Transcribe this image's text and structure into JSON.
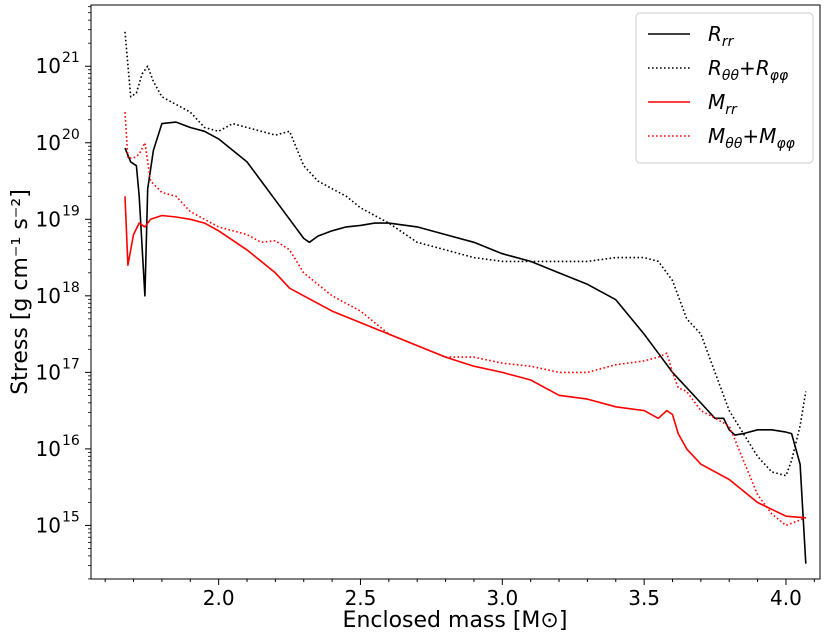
{
  "chart_data": {
    "type": "line",
    "xlabel": "Enclosed mass [M⊙]",
    "ylabel": "Stress [g cm⁻¹ s⁻²]",
    "xlim": [
      1.55,
      4.12
    ],
    "ylim_log10": [
      14.3,
      21.8
    ],
    "x_ticks": [
      2.0,
      2.5,
      3.0,
      3.5,
      4.0
    ],
    "x_tick_labels": [
      "2.0",
      "2.5",
      "3.0",
      "3.5",
      "4.0"
    ],
    "y_ticks_log10": [
      15,
      16,
      17,
      18,
      19,
      20,
      21
    ],
    "y_tick_labels": [
      "10",
      "10",
      "10",
      "10",
      "10",
      "10",
      "10"
    ],
    "y_tick_exponents": [
      "15",
      "16",
      "17",
      "18",
      "19",
      "20",
      "21"
    ],
    "legend_position": "top-right",
    "series": [
      {
        "name": "Rrr",
        "legend_main": "R",
        "legend_sub": "rr",
        "color": "#000000",
        "style": "solid",
        "x": [
          1.67,
          1.69,
          1.71,
          1.72,
          1.74,
          1.75,
          1.77,
          1.8,
          1.85,
          1.9,
          1.95,
          2.0,
          2.05,
          2.1,
          2.15,
          2.2,
          2.25,
          2.3,
          2.32,
          2.35,
          2.4,
          2.45,
          2.5,
          2.55,
          2.6,
          2.7,
          2.8,
          2.9,
          3.0,
          3.1,
          3.2,
          3.3,
          3.4,
          3.5,
          3.55,
          3.6,
          3.65,
          3.7,
          3.75,
          3.78,
          3.8,
          3.82,
          3.85,
          3.9,
          3.95,
          4.0,
          4.02,
          4.05,
          4.07
        ],
        "log10_y": [
          19.93,
          19.75,
          19.7,
          19.3,
          18.0,
          19.4,
          19.9,
          20.25,
          20.27,
          20.2,
          20.15,
          20.05,
          19.9,
          19.75,
          19.5,
          19.25,
          19.0,
          18.75,
          18.7,
          18.78,
          18.85,
          18.9,
          18.92,
          18.95,
          18.95,
          18.9,
          18.8,
          18.7,
          18.55,
          18.45,
          18.3,
          18.15,
          17.95,
          17.5,
          17.25,
          17.0,
          16.8,
          16.6,
          16.4,
          16.4,
          16.25,
          16.18,
          16.2,
          16.25,
          16.25,
          16.22,
          16.2,
          15.8,
          14.5
        ]
      },
      {
        "name": "Rθθ+Rφφ",
        "legend_main": "R",
        "legend_sub": "θθ",
        "legend_plus": "+",
        "legend_main2": "R",
        "legend_sub2": "φφ",
        "color": "#000000",
        "style": "dotted",
        "x": [
          1.67,
          1.69,
          1.71,
          1.73,
          1.75,
          1.77,
          1.8,
          1.85,
          1.9,
          1.95,
          2.0,
          2.05,
          2.1,
          2.15,
          2.2,
          2.25,
          2.3,
          2.35,
          2.4,
          2.45,
          2.5,
          2.55,
          2.6,
          2.7,
          2.8,
          2.9,
          3.0,
          3.1,
          3.2,
          3.3,
          3.4,
          3.5,
          3.55,
          3.6,
          3.65,
          3.7,
          3.75,
          3.8,
          3.85,
          3.9,
          3.95,
          4.0,
          4.02,
          4.05,
          4.07
        ],
        "log10_y": [
          21.45,
          20.6,
          20.65,
          20.9,
          21.0,
          20.8,
          20.6,
          20.5,
          20.4,
          20.2,
          20.15,
          20.25,
          20.2,
          20.15,
          20.1,
          20.15,
          19.7,
          19.5,
          19.4,
          19.3,
          19.15,
          19.05,
          18.95,
          18.7,
          18.6,
          18.5,
          18.45,
          18.45,
          18.45,
          18.45,
          18.5,
          18.5,
          18.45,
          18.2,
          17.7,
          17.5,
          17.0,
          16.5,
          16.2,
          15.9,
          15.7,
          15.65,
          15.85,
          16.3,
          16.75
        ]
      },
      {
        "name": "Mrr",
        "legend_main": "M",
        "legend_sub": "rr",
        "color": "#ff0000",
        "style": "solid",
        "x": [
          1.67,
          1.68,
          1.7,
          1.72,
          1.74,
          1.76,
          1.8,
          1.85,
          1.9,
          1.95,
          2.0,
          2.1,
          2.2,
          2.25,
          2.3,
          2.4,
          2.5,
          2.6,
          2.7,
          2.8,
          2.9,
          3.0,
          3.1,
          3.2,
          3.3,
          3.4,
          3.5,
          3.55,
          3.58,
          3.6,
          3.62,
          3.65,
          3.7,
          3.8,
          3.9,
          4.0,
          4.07
        ],
        "log10_y": [
          19.3,
          18.4,
          18.8,
          18.95,
          18.9,
          19.0,
          19.05,
          19.03,
          19.0,
          18.95,
          18.85,
          18.6,
          18.3,
          18.1,
          18.0,
          17.8,
          17.65,
          17.5,
          17.35,
          17.2,
          17.08,
          17.0,
          16.9,
          16.7,
          16.65,
          16.55,
          16.5,
          16.4,
          16.5,
          16.45,
          16.2,
          16.0,
          15.8,
          15.6,
          15.3,
          15.12,
          15.1
        ]
      },
      {
        "name": "Mθθ+Mφφ",
        "legend_main": "M",
        "legend_sub": "θθ",
        "legend_plus": "+",
        "legend_main2": "M",
        "legend_sub2": "φφ",
        "color": "#ff0000",
        "style": "dotted",
        "x": [
          1.67,
          1.68,
          1.7,
          1.72,
          1.74,
          1.76,
          1.8,
          1.85,
          1.9,
          1.95,
          2.0,
          2.1,
          2.15,
          2.2,
          2.25,
          2.3,
          2.4,
          2.5,
          2.6,
          2.7,
          2.8,
          2.9,
          3.0,
          3.1,
          3.2,
          3.3,
          3.4,
          3.5,
          3.55,
          3.58,
          3.6,
          3.62,
          3.65,
          3.7,
          3.8,
          3.9,
          3.95,
          4.0,
          4.07
        ],
        "log10_y": [
          20.4,
          19.8,
          19.8,
          19.85,
          20.0,
          19.5,
          19.35,
          19.3,
          19.1,
          19.0,
          18.9,
          18.8,
          18.7,
          18.72,
          18.6,
          18.3,
          18.0,
          17.8,
          17.5,
          17.35,
          17.2,
          17.2,
          17.12,
          17.08,
          17.0,
          17.0,
          17.1,
          17.15,
          17.2,
          17.25,
          17.0,
          16.8,
          16.75,
          16.5,
          16.3,
          15.4,
          15.15,
          15.0,
          15.1
        ]
      }
    ]
  }
}
